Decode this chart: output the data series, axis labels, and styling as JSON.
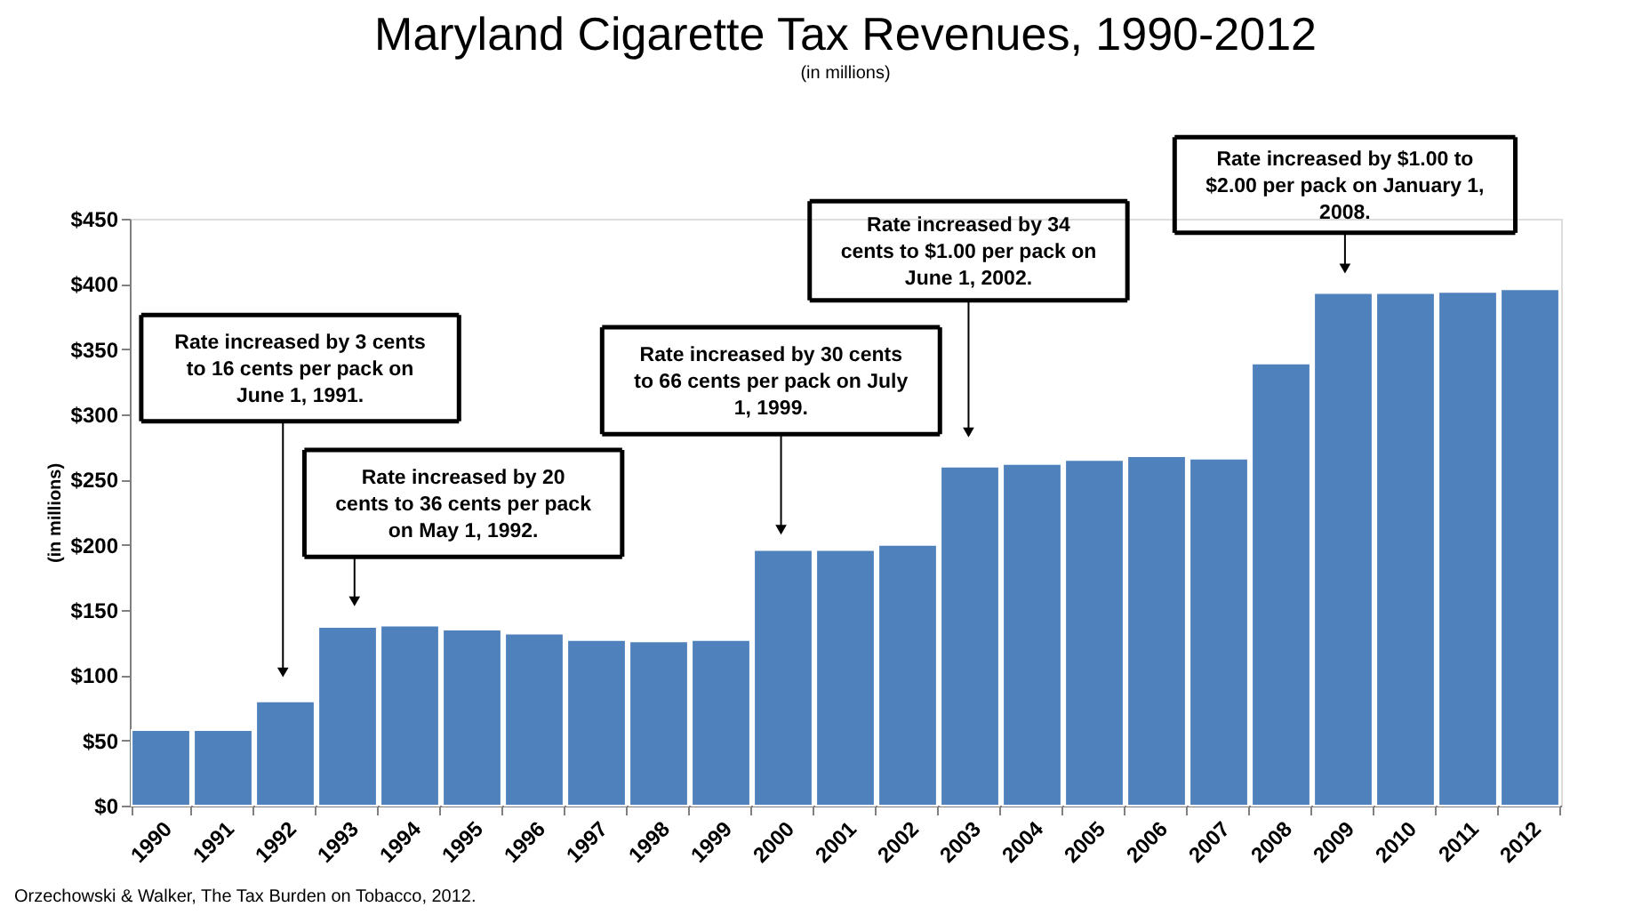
{
  "chart_data": {
    "type": "bar",
    "title": "Maryland Cigarette Tax Revenues, 1990-2012",
    "subtitle": "(in millions)",
    "ylabel": "(in millions)",
    "categories": [
      "1990",
      "1991",
      "1992",
      "1993",
      "1994",
      "1995",
      "1996",
      "1997",
      "1998",
      "1999",
      "2000",
      "2001",
      "2002",
      "2003",
      "2004",
      "2005",
      "2006",
      "2007",
      "2008",
      "2009",
      "2010",
      "2011",
      "2012"
    ],
    "values": [
      58,
      58,
      80,
      137,
      138,
      135,
      132,
      127,
      126,
      127,
      196,
      196,
      200,
      260,
      262,
      265,
      268,
      266,
      339,
      393,
      393,
      394,
      396
    ],
    "color": "#4f81bd",
    "ylim": [
      0,
      450
    ],
    "yticks": [
      {
        "value": 0,
        "label": "$0"
      },
      {
        "value": 50,
        "label": "$50"
      },
      {
        "value": 100,
        "label": "$100"
      },
      {
        "value": 150,
        "label": "$150"
      },
      {
        "value": 200,
        "label": "$200"
      },
      {
        "value": 250,
        "label": "$250"
      },
      {
        "value": 300,
        "label": "$300"
      },
      {
        "value": 350,
        "label": "$350"
      },
      {
        "value": 400,
        "label": "$400"
      },
      {
        "value": 450,
        "label": "$450"
      }
    ],
    "grid": false,
    "legend": false,
    "annotations": [
      "Orzechowski & Walker, The Tax Burden on Tobacco, 2012.",
      "Rate increased by 3 cents\nto 16 cents per pack on\nJune 1, 1991.",
      "Rate increased by 20\ncents to 36 cents per pack\non May 1, 1992.",
      "Rate increased by 30 cents\nto 66 cents per pack on July\n1, 1999.",
      "Rate increased by 34\ncents to $1.00 per pack on\nJune 1, 2002.",
      "Rate increased by $1.00 to\n$2.00 per pack on January 1,\n2008."
    ]
  }
}
